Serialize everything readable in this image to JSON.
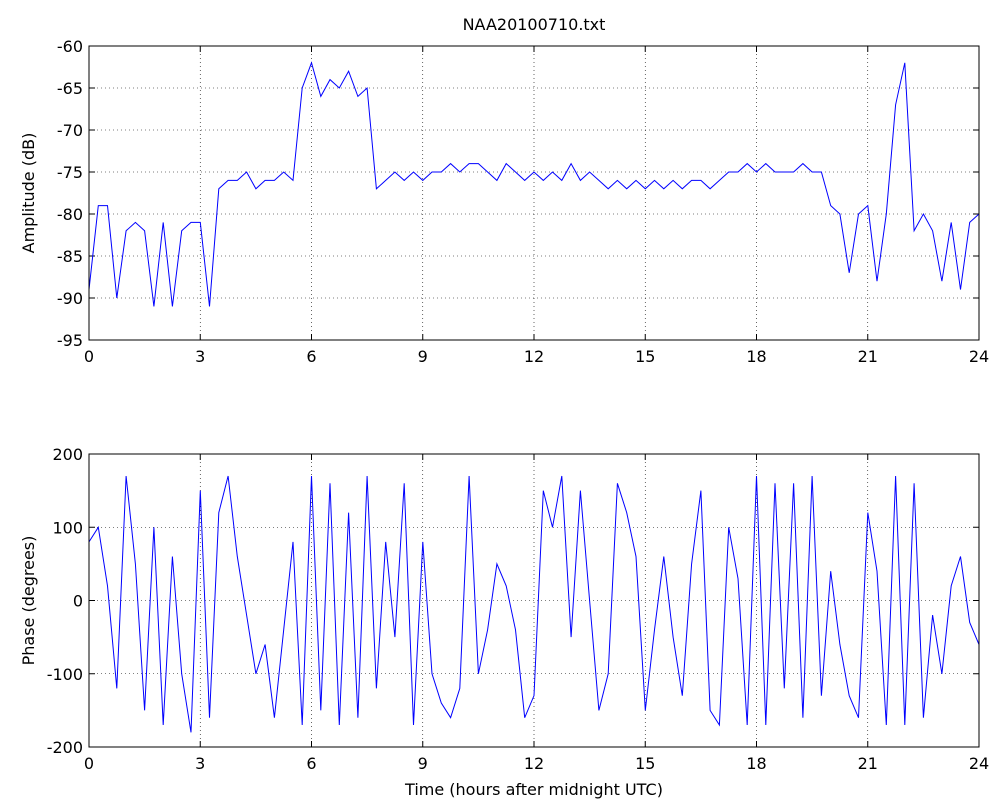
{
  "chart_data": [
    {
      "type": "line",
      "title": "NAA20100710.txt",
      "ylabel": "Amplitude (dB)",
      "color": "#0000ff",
      "grid": true,
      "x": [
        0,
        0.25,
        0.5,
        0.75,
        1,
        1.25,
        1.5,
        1.75,
        2,
        2.25,
        2.5,
        2.75,
        3,
        3.25,
        3.5,
        3.75,
        4,
        4.25,
        4.5,
        4.75,
        5,
        5.25,
        5.5,
        5.75,
        6,
        6.25,
        6.5,
        6.75,
        7,
        7.25,
        7.5,
        7.75,
        8,
        8.25,
        8.5,
        8.75,
        9,
        9.25,
        9.5,
        9.75,
        10,
        10.25,
        10.5,
        10.75,
        11,
        11.25,
        11.5,
        11.75,
        12,
        12.25,
        12.5,
        12.75,
        13,
        13.25,
        13.5,
        13.75,
        14,
        14.25,
        14.5,
        14.75,
        15,
        15.25,
        15.5,
        15.75,
        16,
        16.25,
        16.5,
        16.75,
        17,
        17.25,
        17.5,
        17.75,
        18,
        18.25,
        18.5,
        18.75,
        19,
        19.25,
        19.5,
        19.75,
        20,
        20.25,
        20.5,
        20.75,
        21,
        21.25,
        21.5,
        21.75,
        22,
        22.25,
        22.5,
        22.75,
        23,
        23.25,
        23.5,
        23.75,
        24
      ],
      "values": [
        -89,
        -79,
        -79,
        -90,
        -82,
        -81,
        -82,
        -91,
        -81,
        -91,
        -82,
        -81,
        -81,
        -91,
        -77,
        -76,
        -76,
        -75,
        -77,
        -76,
        -76,
        -75,
        -76,
        -65,
        -62,
        -66,
        -64,
        -65,
        -63,
        -66,
        -65,
        -77,
        -76,
        -75,
        -76,
        -75,
        -76,
        -75,
        -75,
        -74,
        -75,
        -74,
        -74,
        -75,
        -76,
        -74,
        -75,
        -76,
        -75,
        -76,
        -75,
        -76,
        -74,
        -76,
        -75,
        -76,
        -77,
        -76,
        -77,
        -76,
        -77,
        -76,
        -77,
        -76,
        -77,
        -76,
        -76,
        -77,
        -76,
        -75,
        -75,
        -74,
        -75,
        -74,
        -75,
        -75,
        -75,
        -74,
        -75,
        -75,
        -79,
        -80,
        -87,
        -80,
        -79,
        -88,
        -80,
        -67,
        -62,
        -82,
        -80,
        -82,
        -88,
        -81,
        -89,
        -81,
        -80
      ],
      "xlim": [
        0,
        24
      ],
      "xticks": [
        0,
        3,
        6,
        9,
        12,
        15,
        18,
        21,
        24
      ],
      "ylim": [
        -95,
        -60
      ],
      "yticks": [
        -95,
        -90,
        -85,
        -80,
        -75,
        -70,
        -65,
        -60
      ]
    },
    {
      "type": "line",
      "ylabel": "Phase (degrees)",
      "xlabel": "Time (hours after midnight UTC)",
      "color": "#0000ff",
      "grid": true,
      "x": [
        0,
        0.25,
        0.5,
        0.75,
        1,
        1.25,
        1.5,
        1.75,
        2,
        2.25,
        2.5,
        2.75,
        3,
        3.25,
        3.5,
        3.75,
        4,
        4.25,
        4.5,
        4.75,
        5,
        5.25,
        5.5,
        5.75,
        6,
        6.25,
        6.5,
        6.75,
        7,
        7.25,
        7.5,
        7.75,
        8,
        8.25,
        8.5,
        8.75,
        9,
        9.25,
        9.5,
        9.75,
        10,
        10.25,
        10.5,
        10.75,
        11,
        11.25,
        11.5,
        11.75,
        12,
        12.25,
        12.5,
        12.75,
        13,
        13.25,
        13.5,
        13.75,
        14,
        14.25,
        14.5,
        14.75,
        15,
        15.25,
        15.5,
        15.75,
        16,
        16.25,
        16.5,
        16.75,
        17,
        17.25,
        17.5,
        17.75,
        18,
        18.25,
        18.5,
        18.75,
        19,
        19.25,
        19.5,
        19.75,
        20,
        20.25,
        20.5,
        20.75,
        21,
        21.25,
        21.5,
        21.75,
        22,
        22.25,
        22.5,
        22.75,
        23,
        23.25,
        23.5,
        23.75,
        24
      ],
      "values": [
        80,
        100,
        20,
        -120,
        170,
        50,
        -150,
        100,
        -170,
        60,
        -100,
        -180,
        150,
        -160,
        120,
        170,
        60,
        -20,
        -100,
        -60,
        -160,
        -40,
        80,
        -170,
        170,
        -150,
        160,
        -170,
        120,
        -160,
        170,
        -120,
        80,
        -50,
        160,
        -170,
        80,
        -100,
        -140,
        -160,
        -120,
        170,
        -100,
        -40,
        50,
        20,
        -40,
        -160,
        -130,
        150,
        100,
        170,
        -50,
        150,
        0,
        -150,
        -100,
        160,
        120,
        60,
        -150,
        -40,
        60,
        -50,
        -130,
        50,
        150,
        -150,
        -170,
        100,
        30,
        -170,
        170,
        -170,
        160,
        -120,
        160,
        -160,
        170,
        -130,
        40,
        -60,
        -130,
        -160,
        120,
        40,
        -170,
        170,
        -170,
        160,
        -160,
        -20,
        -100,
        20,
        60,
        -30,
        -60
      ],
      "xlim": [
        0,
        24
      ],
      "xticks": [
        0,
        3,
        6,
        9,
        12,
        15,
        18,
        21,
        24
      ],
      "ylim": [
        -200,
        200
      ],
      "yticks": [
        -200,
        -100,
        0,
        100,
        200
      ]
    }
  ]
}
